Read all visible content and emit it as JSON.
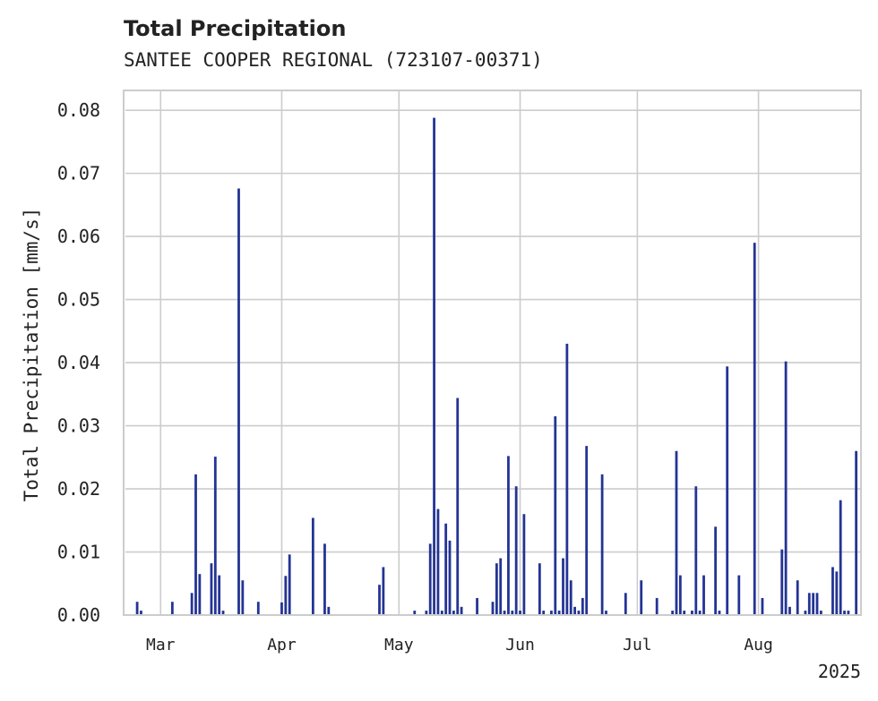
{
  "chart_data": {
    "type": "bar",
    "title": "Total Precipitation",
    "subtitle": "SANTEE COOPER REGIONAL (723107-00371)",
    "ylabel": "Total Precipitation [mm/s]",
    "xlabel": "",
    "year_label": "2025",
    "ylim": [
      0,
      0.083
    ],
    "yticks": [
      "0.00",
      "0.01",
      "0.02",
      "0.03",
      "0.04",
      "0.05",
      "0.06",
      "0.07",
      "0.08"
    ],
    "xlim": [
      "2025-02-20",
      "2025-08-27"
    ],
    "xticks": [
      {
        "date": "2025-03-01",
        "label": "Mar"
      },
      {
        "date": "2025-04-01",
        "label": "Apr"
      },
      {
        "date": "2025-05-01",
        "label": "May"
      },
      {
        "date": "2025-06-01",
        "label": "Jun"
      },
      {
        "date": "2025-07-01",
        "label": "Jul"
      },
      {
        "date": "2025-08-01",
        "label": "Aug"
      }
    ],
    "grid": true,
    "series": [
      {
        "color": "#233494",
        "points": [
          [
            "2025-02-23",
            0.0021
          ],
          [
            "2025-02-24",
            0.0007
          ],
          [
            "2025-03-04",
            0.0021
          ],
          [
            "2025-03-09",
            0.0035
          ],
          [
            "2025-03-10",
            0.0223
          ],
          [
            "2025-03-11",
            0.0065
          ],
          [
            "2025-03-14",
            0.0082
          ],
          [
            "2025-03-15",
            0.0251
          ],
          [
            "2025-03-16",
            0.0063
          ],
          [
            "2025-03-17",
            0.0007
          ],
          [
            "2025-03-21",
            0.0676
          ],
          [
            "2025-03-22",
            0.0055
          ],
          [
            "2025-03-26",
            0.0021
          ],
          [
            "2025-04-01",
            0.002
          ],
          [
            "2025-04-02",
            0.0062
          ],
          [
            "2025-04-03",
            0.0096
          ],
          [
            "2025-04-09",
            0.0154
          ],
          [
            "2025-04-12",
            0.0113
          ],
          [
            "2025-04-13",
            0.0013
          ],
          [
            "2025-04-26",
            0.0048
          ],
          [
            "2025-04-27",
            0.0076
          ],
          [
            "2025-05-05",
            0.0007
          ],
          [
            "2025-05-08",
            0.0007
          ],
          [
            "2025-05-09",
            0.0113
          ],
          [
            "2025-05-10",
            0.0788
          ],
          [
            "2025-05-11",
            0.0168
          ],
          [
            "2025-05-12",
            0.0007
          ],
          [
            "2025-05-13",
            0.0145
          ],
          [
            "2025-05-14",
            0.0118
          ],
          [
            "2025-05-15",
            0.0007
          ],
          [
            "2025-05-16",
            0.0344
          ],
          [
            "2025-05-17",
            0.0013
          ],
          [
            "2025-05-21",
            0.0027
          ],
          [
            "2025-05-25",
            0.0021
          ],
          [
            "2025-05-26",
            0.0082
          ],
          [
            "2025-05-27",
            0.009
          ],
          [
            "2025-05-28",
            0.0007
          ],
          [
            "2025-05-29",
            0.0252
          ],
          [
            "2025-05-30",
            0.0007
          ],
          [
            "2025-05-31",
            0.0204
          ],
          [
            "2025-06-01",
            0.0007
          ],
          [
            "2025-06-02",
            0.016
          ],
          [
            "2025-06-06",
            0.0082
          ],
          [
            "2025-06-07",
            0.0007
          ],
          [
            "2025-06-09",
            0.0007
          ],
          [
            "2025-06-10",
            0.0315
          ],
          [
            "2025-06-11",
            0.0007
          ],
          [
            "2025-06-12",
            0.009
          ],
          [
            "2025-06-13",
            0.043
          ],
          [
            "2025-06-14",
            0.0055
          ],
          [
            "2025-06-15",
            0.0013
          ],
          [
            "2025-06-16",
            0.0007
          ],
          [
            "2025-06-17",
            0.0027
          ],
          [
            "2025-06-18",
            0.0268
          ],
          [
            "2025-06-22",
            0.0223
          ],
          [
            "2025-06-23",
            0.0007
          ],
          [
            "2025-06-28",
            0.0035
          ],
          [
            "2025-07-02",
            0.0055
          ],
          [
            "2025-07-06",
            0.0027
          ],
          [
            "2025-07-10",
            0.0007
          ],
          [
            "2025-07-11",
            0.026
          ],
          [
            "2025-07-12",
            0.0063
          ],
          [
            "2025-07-13",
            0.0007
          ],
          [
            "2025-07-15",
            0.0007
          ],
          [
            "2025-07-16",
            0.0204
          ],
          [
            "2025-07-17",
            0.0007
          ],
          [
            "2025-07-18",
            0.0063
          ],
          [
            "2025-07-21",
            0.014
          ],
          [
            "2025-07-22",
            0.0007
          ],
          [
            "2025-07-24",
            0.0394
          ],
          [
            "2025-07-27",
            0.0063
          ],
          [
            "2025-07-31",
            0.059
          ],
          [
            "2025-08-02",
            0.0027
          ],
          [
            "2025-08-07",
            0.0104
          ],
          [
            "2025-08-08",
            0.0402
          ],
          [
            "2025-08-09",
            0.0013
          ],
          [
            "2025-08-11",
            0.0055
          ],
          [
            "2025-08-13",
            0.0007
          ],
          [
            "2025-08-14",
            0.0035
          ],
          [
            "2025-08-15",
            0.0035
          ],
          [
            "2025-08-16",
            0.0035
          ],
          [
            "2025-08-17",
            0.0007
          ],
          [
            "2025-08-20",
            0.0076
          ],
          [
            "2025-08-21",
            0.0069
          ],
          [
            "2025-08-22",
            0.0182
          ],
          [
            "2025-08-23",
            0.0007
          ],
          [
            "2025-08-24",
            0.0007
          ],
          [
            "2025-08-26",
            0.026
          ]
        ]
      }
    ]
  }
}
